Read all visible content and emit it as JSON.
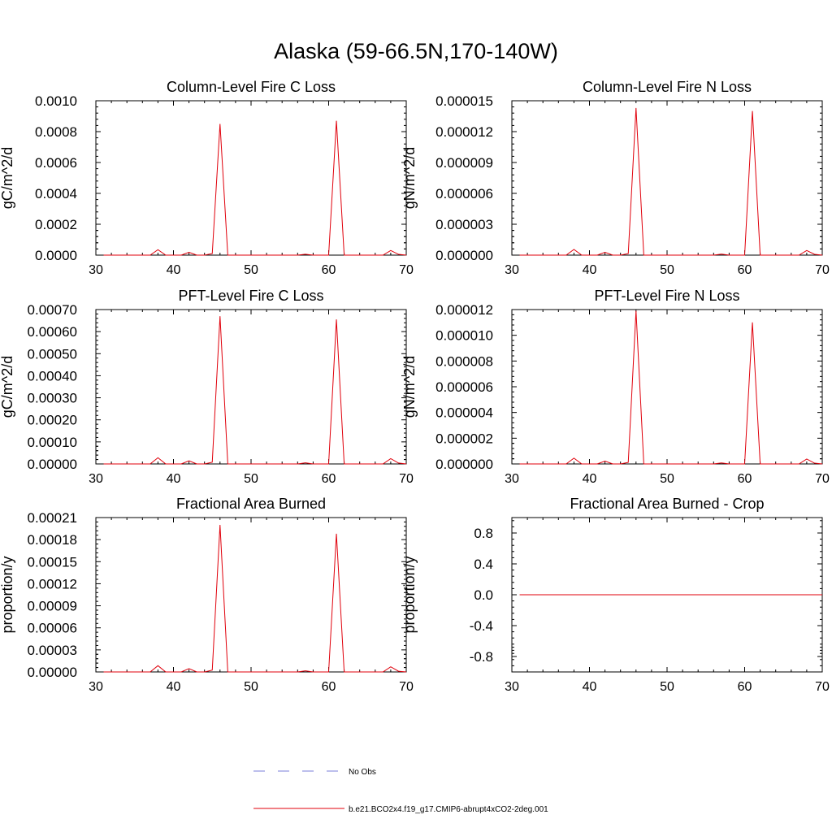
{
  "title": "Alaska (59-66.5N,170-140W)",
  "legend": [
    {
      "label": "No Obs",
      "color": "#7a7fd8",
      "dash": true
    },
    {
      "label": "b.e21.BCO2x4.f19_g17.CMIP6-abrupt4xCO2-2deg.001",
      "color": "#e0000b",
      "dash": false
    }
  ],
  "chart_data": [
    {
      "type": "line",
      "title": "Column-Level Fire C Loss",
      "ylabel": "gC/m^2/d",
      "xlim": [
        30,
        70
      ],
      "ylim": [
        0,
        0.001
      ],
      "xticks": [
        30,
        40,
        50,
        60,
        70
      ],
      "xtick_labels": [
        "30",
        "40",
        "50",
        "60",
        "70"
      ],
      "yticks": [
        0,
        0.0002,
        0.0004,
        0.0006,
        0.0008,
        0.001
      ],
      "ytick_labels": [
        "0.0000",
        "0.0002",
        "0.0004",
        "0.0006",
        "0.0008",
        "0.0010"
      ],
      "series": [
        {
          "name": "b.e21.BCO2x4.f19_g17.CMIP6-abrupt4xCO2-2deg.001",
          "color": "#e0000b",
          "x": [
            31,
            32,
            33,
            34,
            35,
            36,
            37,
            38,
            39,
            40,
            41,
            42,
            43,
            44,
            45,
            46,
            47,
            48,
            49,
            50,
            51,
            52,
            53,
            54,
            55,
            56,
            57,
            58,
            59,
            60,
            61,
            62,
            63,
            64,
            65,
            66,
            67,
            68,
            69,
            70
          ],
          "y": [
            0,
            0,
            0,
            0,
            0,
            0,
            0,
            3.5e-05,
            0,
            0,
            0,
            1.8e-05,
            0,
            0,
            1e-05,
            0.00085,
            0,
            0,
            0,
            0,
            0,
            0,
            0,
            0,
            0,
            0,
            6e-06,
            0,
            0,
            0,
            0.00087,
            0,
            0,
            0,
            0,
            0,
            0,
            3e-05,
            5e-06,
            0
          ]
        }
      ]
    },
    {
      "type": "line",
      "title": "Column-Level Fire N Loss",
      "ylabel": "gN/m^2/d",
      "xlim": [
        30,
        70
      ],
      "ylim": [
        0,
        1.5e-05
      ],
      "xticks": [
        30,
        40,
        50,
        60,
        70
      ],
      "xtick_labels": [
        "30",
        "40",
        "50",
        "60",
        "70"
      ],
      "yticks": [
        0,
        3e-06,
        6e-06,
        9e-06,
        1.2e-05,
        1.5e-05
      ],
      "ytick_labels": [
        "0.000000",
        "0.000003",
        "0.000006",
        "0.000009",
        "0.000012",
        "0.000015"
      ],
      "series": [
        {
          "name": "b.e21.BCO2x4.f19_g17.CMIP6-abrupt4xCO2-2deg.001",
          "color": "#e0000b",
          "x": [
            31,
            32,
            33,
            34,
            35,
            36,
            37,
            38,
            39,
            40,
            41,
            42,
            43,
            44,
            45,
            46,
            47,
            48,
            49,
            50,
            51,
            52,
            53,
            54,
            55,
            56,
            57,
            58,
            59,
            60,
            61,
            62,
            63,
            64,
            65,
            66,
            67,
            68,
            69,
            70
          ],
          "y": [
            0,
            0,
            0,
            0,
            0,
            0,
            0,
            5.5e-07,
            0,
            0,
            0,
            2.7e-07,
            0,
            0,
            1.5e-07,
            1.43e-05,
            0,
            0,
            0,
            0,
            0,
            0,
            0,
            0,
            0,
            0,
            1e-07,
            0,
            0,
            0,
            1.4e-05,
            0,
            0,
            0,
            0,
            0,
            0,
            4.5e-07,
            8e-08,
            0
          ]
        }
      ]
    },
    {
      "type": "line",
      "title": "PFT-Level Fire C Loss",
      "ylabel": "gC/m^2/d",
      "xlim": [
        30,
        70
      ],
      "ylim": [
        0,
        0.0007
      ],
      "xticks": [
        30,
        40,
        50,
        60,
        70
      ],
      "xtick_labels": [
        "30",
        "40",
        "50",
        "60",
        "70"
      ],
      "yticks": [
        0,
        0.0001,
        0.0002,
        0.0003,
        0.0004,
        0.0005,
        0.0006,
        0.0007
      ],
      "ytick_labels": [
        "0.00000",
        "0.00010",
        "0.00020",
        "0.00030",
        "0.00040",
        "0.00050",
        "0.00060",
        "0.00070"
      ],
      "series": [
        {
          "name": "b.e21.BCO2x4.f19_g17.CMIP6-abrupt4xCO2-2deg.001",
          "color": "#e0000b",
          "x": [
            31,
            32,
            33,
            34,
            35,
            36,
            37,
            38,
            39,
            40,
            41,
            42,
            43,
            44,
            45,
            46,
            47,
            48,
            49,
            50,
            51,
            52,
            53,
            54,
            55,
            56,
            57,
            58,
            59,
            60,
            61,
            62,
            63,
            64,
            65,
            66,
            67,
            68,
            69,
            70
          ],
          "y": [
            0,
            0,
            0,
            0,
            0,
            0,
            0,
            2.8e-05,
            0,
            0,
            0,
            1.4e-05,
            0,
            0,
            8e-06,
            0.00067,
            0,
            0,
            0,
            0,
            0,
            0,
            0,
            0,
            0,
            0,
            5e-06,
            0,
            0,
            0,
            0.000655,
            0,
            0,
            0,
            0,
            0,
            0,
            2.4e-05,
            4e-06,
            0
          ]
        }
      ]
    },
    {
      "type": "line",
      "title": "PFT-Level Fire N Loss",
      "ylabel": "gN/m^2/d",
      "xlim": [
        30,
        70
      ],
      "ylim": [
        0,
        1.2e-05
      ],
      "xticks": [
        30,
        40,
        50,
        60,
        70
      ],
      "xtick_labels": [
        "30",
        "40",
        "50",
        "60",
        "70"
      ],
      "yticks": [
        0,
        2e-06,
        4e-06,
        6e-06,
        8e-06,
        1e-05,
        1.2e-05
      ],
      "ytick_labels": [
        "0.000000",
        "0.000002",
        "0.000004",
        "0.000006",
        "0.000008",
        "0.000010",
        "0.000012"
      ],
      "series": [
        {
          "name": "b.e21.BCO2x4.f19_g17.CMIP6-abrupt4xCO2-2deg.001",
          "color": "#e0000b",
          "x": [
            31,
            32,
            33,
            34,
            35,
            36,
            37,
            38,
            39,
            40,
            41,
            42,
            43,
            44,
            45,
            46,
            47,
            48,
            49,
            50,
            51,
            52,
            53,
            54,
            55,
            56,
            57,
            58,
            59,
            60,
            61,
            62,
            63,
            64,
            65,
            66,
            67,
            68,
            69,
            70
          ],
          "y": [
            0,
            0,
            0,
            0,
            0,
            0,
            0,
            4.5e-07,
            0,
            0,
            0,
            2.2e-07,
            0,
            0,
            1.2e-07,
            1.19e-05,
            0,
            0,
            0,
            0,
            0,
            0,
            0,
            0,
            0,
            0,
            8e-08,
            0,
            0,
            0,
            1.1e-05,
            0,
            0,
            0,
            0,
            0,
            0,
            3.8e-07,
            6e-08,
            0
          ]
        }
      ]
    },
    {
      "type": "line",
      "title": "Fractional Area Burned",
      "ylabel": "proportion/y",
      "xlim": [
        30,
        70
      ],
      "ylim": [
        0,
        0.00021
      ],
      "xticks": [
        30,
        40,
        50,
        60,
        70
      ],
      "xtick_labels": [
        "30",
        "40",
        "50",
        "60",
        "70"
      ],
      "yticks": [
        0,
        3e-05,
        6e-05,
        9e-05,
        0.00012,
        0.00015,
        0.00018,
        0.00021
      ],
      "ytick_labels": [
        "0.00000",
        "0.00003",
        "0.00006",
        "0.00009",
        "0.00012",
        "0.00015",
        "0.00018",
        "0.00021"
      ],
      "series": [
        {
          "name": "b.e21.BCO2x4.f19_g17.CMIP6-abrupt4xCO2-2deg.001",
          "color": "#e0000b",
          "x": [
            31,
            32,
            33,
            34,
            35,
            36,
            37,
            38,
            39,
            40,
            41,
            42,
            43,
            44,
            45,
            46,
            47,
            48,
            49,
            50,
            51,
            52,
            53,
            54,
            55,
            56,
            57,
            58,
            59,
            60,
            61,
            62,
            63,
            64,
            65,
            66,
            67,
            68,
            69,
            70
          ],
          "y": [
            0,
            0,
            0,
            0,
            0,
            0,
            0,
            8.5e-06,
            0,
            0,
            0,
            4.5e-06,
            0,
            0,
            2.5e-06,
            0.0002,
            0,
            0,
            0,
            0,
            0,
            0,
            0,
            0,
            0,
            0,
            1.5e-06,
            0,
            0,
            0,
            0.000188,
            0,
            0,
            0,
            0,
            0,
            0,
            7e-06,
            1e-06,
            0
          ]
        }
      ]
    },
    {
      "type": "line",
      "title": "Fractional Area Burned - Crop",
      "ylabel": "proportion/y",
      "xlim": [
        30,
        70
      ],
      "ylim": [
        -1,
        1
      ],
      "xticks": [
        30,
        40,
        50,
        60,
        70
      ],
      "xtick_labels": [
        "30",
        "40",
        "50",
        "60",
        "70"
      ],
      "yticks": [
        -0.8,
        -0.4,
        0,
        0.4,
        0.8
      ],
      "ytick_labels": [
        "-0.8",
        "-0.4",
        "0.0",
        "0.4",
        "0.8"
      ],
      "series": [
        {
          "name": "b.e21.BCO2x4.f19_g17.CMIP6-abrupt4xCO2-2deg.001",
          "color": "#e0000b",
          "x": [
            31,
            70
          ],
          "y": [
            0,
            0
          ]
        }
      ]
    }
  ]
}
